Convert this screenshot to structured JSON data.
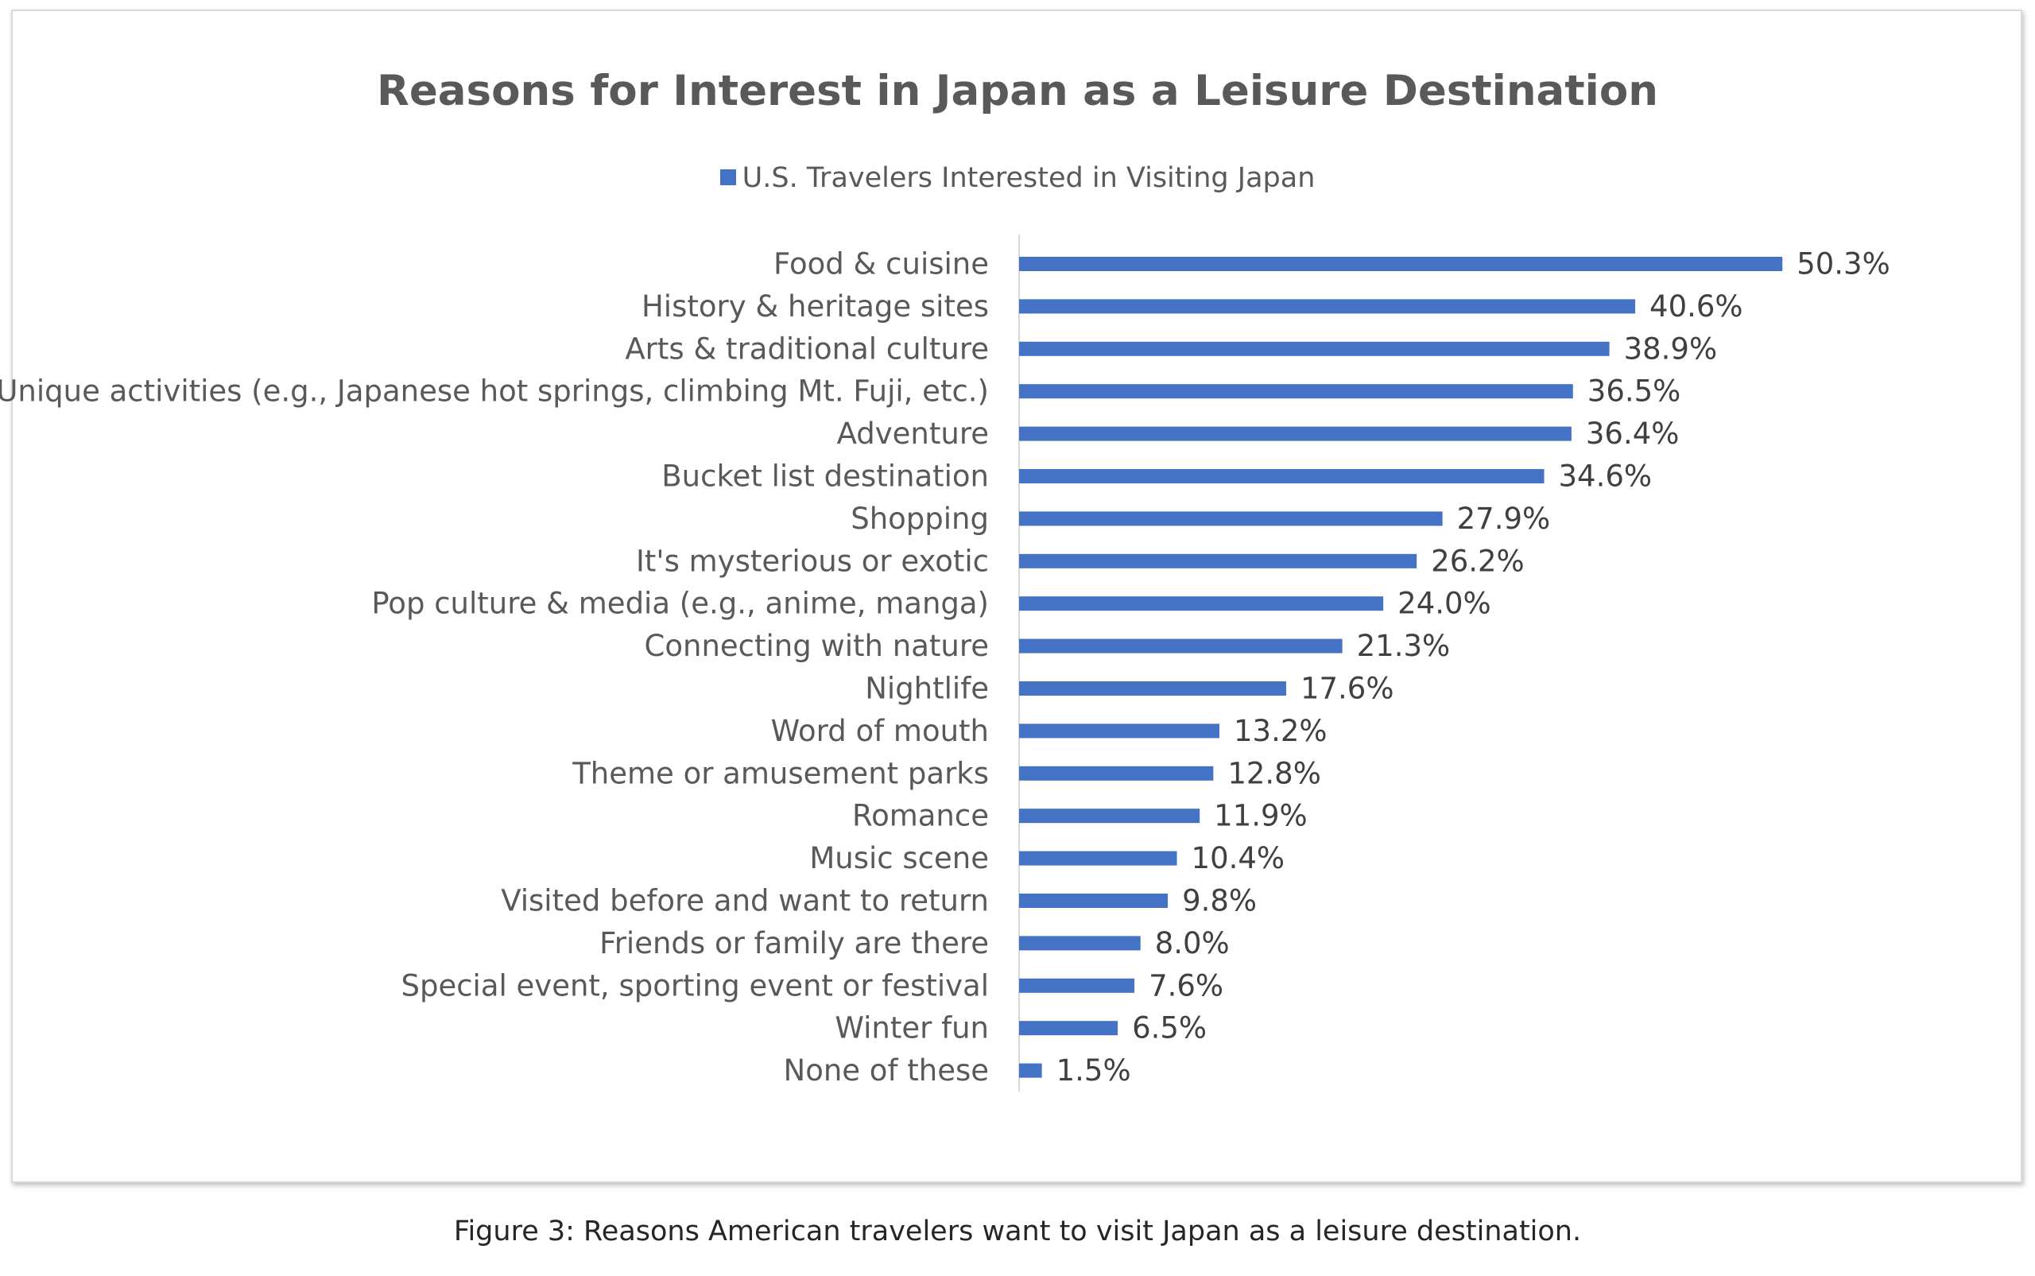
{
  "chart_data": {
    "type": "bar",
    "orientation": "horizontal",
    "title": "Reasons for Interest in Japan as a Leisure Destination",
    "legend_position": "top",
    "grid": false,
    "value_format": "percent",
    "series": [
      {
        "name": "U.S. Travelers Interested in Visiting Japan",
        "color": "#4472c4",
        "values": [
          50.3,
          40.6,
          38.9,
          36.5,
          36.4,
          34.6,
          27.9,
          26.2,
          24.0,
          21.3,
          17.6,
          13.2,
          12.8,
          11.9,
          10.4,
          9.8,
          8.0,
          7.6,
          6.5,
          1.5
        ],
        "labels": [
          "50.3%",
          "40.6%",
          "38.9%",
          "36.5%",
          "36.4%",
          "34.6%",
          "27.9%",
          "26.2%",
          "24.0%",
          "21.3%",
          "17.6%",
          "13.2%",
          "12.8%",
          "11.9%",
          "10.4%",
          "9.8%",
          "8.0%",
          "7.6%",
          "6.5%",
          "1.5%"
        ]
      }
    ],
    "categories": [
      "Food & cuisine",
      "History & heritage sites",
      "Arts & traditional culture",
      "Unique activities (e.g., Japanese hot springs, climbing Mt. Fuji, etc.)",
      "Adventure",
      "Bucket list destination",
      "Shopping",
      "It's mysterious or exotic",
      "Pop culture & media (e.g., anime, manga)",
      "Connecting with nature",
      "Nightlife",
      "Word of mouth",
      "Theme or amusement parks",
      "Romance",
      "Music scene",
      "Visited before and want to return",
      "Friends or family are there",
      "Special event, sporting event or festival",
      "Winter fun",
      "None of these"
    ],
    "xlim": [
      0,
      55
    ]
  },
  "caption": "Figure 3: Reasons American travelers want to visit Japan as a leisure destination.",
  "colors": {
    "bar": "#4472c4",
    "text": "#595959",
    "axis": "#d9d9d9"
  }
}
